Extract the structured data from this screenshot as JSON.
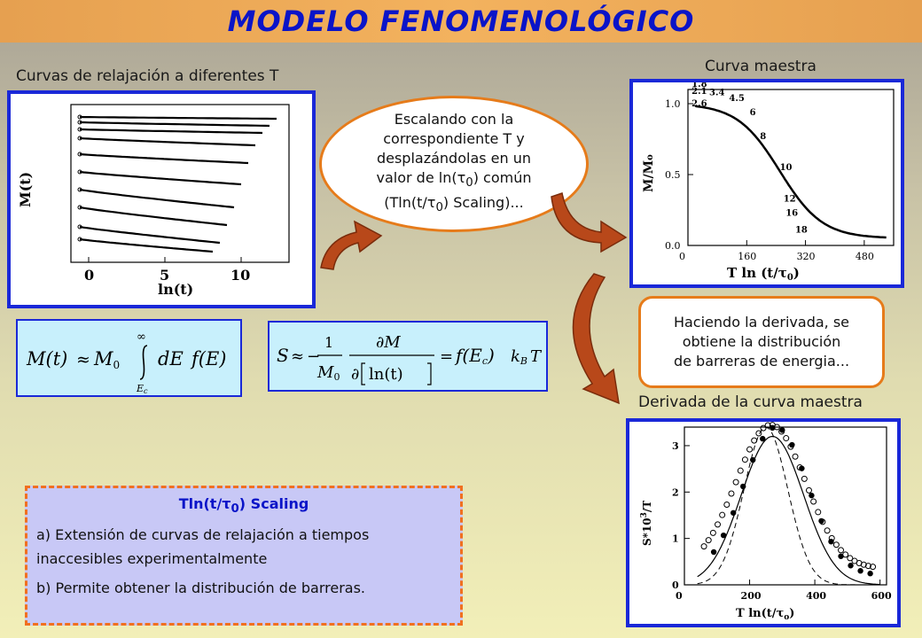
{
  "title": "MODELO FENOMENOLÓGICO",
  "captions": {
    "relaxation": "Curvas de relajación a diferentes T",
    "master": "Curva maestra",
    "derivative": "Derivada de la curva maestra"
  },
  "bubble": {
    "line1": "Escalando con la",
    "line2": "correspondiente T y",
    "line3": "desplazándolas en un",
    "line4_pre": "valor de ln(",
    "line4_post": ") común",
    "line5_pre": "(Tln(t/",
    "line5_post": ") Scaling)..."
  },
  "note": {
    "line1": "Haciendo la derivada, se",
    "line2": "obtiene la distribución",
    "line3": "de barreras de energia..."
  },
  "summary": {
    "title_pre": "Tln(t/",
    "title_post": ") Scaling",
    "item_a": "a) Extensión de curvas de relajación a tiempos inaccesibles experimentalmente",
    "item_b": "b) Permite obtener la distribución de barreras."
  },
  "symbols": {
    "tau": "τ",
    "sub0": "0"
  },
  "equations": {
    "eq1": {
      "M_t": "M(t)",
      "approx": "≈",
      "M0": "M",
      "sub0": "0",
      "inf": "∞",
      "Ec": "E",
      "Ec_sub": "c",
      "dE": "dE",
      "fE": "f(E)"
    },
    "eq2": {
      "S": "S",
      "approx": "≈",
      "minus": "−",
      "one": "1",
      "M0": "M",
      "sub0": "0",
      "dM": "∂M",
      "dln": "∂",
      "lnt": "ln(t)",
      "eq": "=",
      "fEc": "f(E",
      "fEc_sub": "c",
      "fEc_close": ")",
      "kB": "k",
      "kB_sub": "B",
      "T": "T"
    }
  },
  "chart_relaxation": {
    "xlabel": "ln(t)",
    "ylabel": "M(t)",
    "xticks": [
      "0",
      "5",
      "10"
    ]
  },
  "chart_master": {
    "xlabel_pre": "T  ln  (t/",
    "xlabel_post": ")",
    "ylabel": "M/M",
    "ylabel_sub": "o",
    "xticks": [
      "0",
      "160",
      "320",
      "480"
    ],
    "yticks": [
      "0.0",
      "0.5",
      "1.0"
    ],
    "curve_labels": [
      "1.8",
      "2.1",
      "2.6",
      "3.4",
      "4.5",
      "6",
      "8",
      "10",
      "12",
      "16",
      "18"
    ]
  },
  "chart_derivative": {
    "xlabel_pre": "T ln(t/",
    "xlabel_post": ")",
    "tau_sub": "o",
    "ylabel": "S*10",
    "ylabel_sup": "3",
    "ylabel_post": "/T",
    "xticks": [
      "0",
      "200",
      "400",
      "600"
    ],
    "yticks": [
      "0",
      "1",
      "2",
      "3"
    ]
  }
}
